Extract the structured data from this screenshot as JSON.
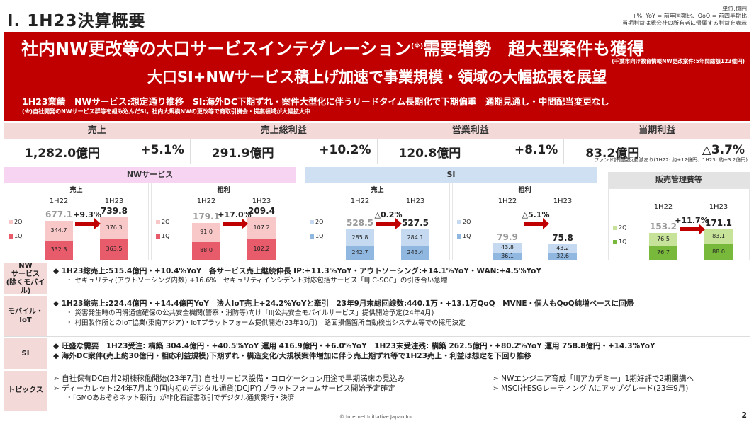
{
  "page_title": "Ⅰ. 1H23決算概要",
  "notes": [
    "単位:億円",
    "+%, YoY = 前年同期比、QoQ = 前四半期比",
    "当期利益は親会社の所有者に帰属する利益を表示"
  ],
  "banner": {
    "headline1_a": "社内NW更改等の大口サービスインテグレーション",
    "headline1_sup": "(※)",
    "headline1_b": "需要増勢　超大型案件も獲得",
    "headline_note": "(千葉市向け教育情報NW更改案件:5年間総額123億円)",
    "headline2": "大口SI+NWサービス積上げ加速で事業規模・領域の大幅拡張を展望",
    "summary": "1H23業績　NWサービス:想定通り推移　SI:海外DC下期ずれ・案件大型化に伴うリードタイム長期化で下期偏重　通期見通し・中間配当変更なし",
    "summary_note": "(※)自社開発のNWサービス群等を組み込んだSI。社内大規模NWの更改等で商取引機会・提案領域が大幅拡大中"
  },
  "kpis": [
    {
      "label": "売上",
      "amount": "1,282.0億円",
      "change": "+5.1%",
      "sub": ""
    },
    {
      "label": "売上総利益",
      "amount": "291.9億円",
      "change": "+10.2%",
      "sub": ""
    },
    {
      "label": "営業利益",
      "amount": "120.8億円",
      "change": "+8.1%",
      "sub": ""
    },
    {
      "label": "当期利益",
      "amount": "83.2億円",
      "change": "△3.7%",
      "sub": "ファンド評価益反動減あり(1H22: 約+12億円、1H23: 約+3.2億円)"
    }
  ],
  "segments": {
    "nw": "NWサービス",
    "si": "SI",
    "sga": "販売管理費等"
  },
  "legend": {
    "q2": "2Q",
    "q1": "1Q"
  },
  "periods": {
    "h22": "1H22",
    "h23": "1H23"
  },
  "panels": [
    {
      "title": "売上",
      "h22_total": "677.1",
      "h23_total": "739.8",
      "h22_q2": "344.7",
      "h22_q1": "332.3",
      "h23_q2": "376.3",
      "h23_q1": "363.5",
      "change": "+9.3%"
    },
    {
      "title": "粗利",
      "h22_total": "179.1",
      "h23_total": "209.4",
      "h22_q2": "91.0",
      "h22_q1": "88.0",
      "h23_q2": "107.2",
      "h23_q1": "102.2",
      "change": "+17.0%"
    },
    {
      "title": "売上",
      "h22_total": "528.5",
      "h23_total": "527.5",
      "h22_q2": "285.8",
      "h22_q1": "242.7",
      "h23_q2": "284.1",
      "h23_q1": "243.4",
      "change": "△0.2%"
    },
    {
      "title": "粗利",
      "h22_total": "79.9",
      "h23_total": "75.8",
      "h22_q2": "43.8",
      "h22_q1": "36.1",
      "h23_q2": "43.2",
      "h23_q1": "32.6",
      "change": "△5.1%"
    },
    {
      "title": "",
      "h22_total": "153.2",
      "h23_total": "171.1",
      "h22_q2": "76.5",
      "h22_q1": "76.7",
      "h23_q2": "83.1",
      "h23_q1": "88.0",
      "change": "+11.7%"
    }
  ],
  "rows": [
    {
      "label": "NW\nサービス\n(除くモバイル)",
      "lines": [
        "◆ 1H23総売上:515.4億円・+10.4%YoY　各サービス売上継続伸長 IP:+11.3%YoY・アウトソーシング:+14.1%YoY・WAN:+4.5%YoY",
        "・ セキュリティ(アウトソーシング内数) +16.6%　セキュリティインシデント対応包括サービス「IIJ C-SOC」の引き合い急増"
      ]
    },
    {
      "label": "モバイル・\nIoT",
      "lines": [
        "◆ 1H23総売上:224.4億円・+14.4億円YoY　法人IoT売上+24.2%YoYと牽引　23年9月末総回線数:440.1万・+13.1万QoQ　MVNE・個人もQoQ純増ペースに回帰",
        "・ 災害発生時の円滑通信確保の公共安全機関(警察・消防等)向け「IIJ公共安全モバイルサービス」提供開始予定(24年4月)",
        "・ 村田製作所とのIoT協業(東南アジア)・IoTプラットフォーム提供開始(23年10月)　路面損傷箇所自動検出システム等での採用決定"
      ]
    },
    {
      "label": "SI",
      "lines": [
        "◆ 旺盛な需要　1H23受注: 構築 304.4億円・+40.5%YoY 運用 416.9億円・+6.0%YoY　1H23末受注残: 構築 262.5億円・+80.2%YoY 運用 758.8億円・+14.3%YoY",
        "◆ 海外DC案件(売上約30億円・相応利益規模)下期ずれ・構造変化/大規模案件増加に伴う売上期ずれ等で1H23売上・利益は想定を下回り推移"
      ]
    }
  ],
  "topics": {
    "label": "トピックス",
    "left": [
      "➢ 自社保有DC白井2期棟稼働開始(23年7月) 自社サービス設備・コロケーション用途で早期満床の見込み",
      "➢ ディーカレット:24年7月より国内初のデジタル通貨(DCJPY)プラットフォームサービス開始予定確定",
      "・「GMOあおぞらネット銀行」が非化石証書取引でデジタル通貨発行・決済"
    ],
    "right": [
      "➢ NWエンジニア育成「IIJアカデミー」1期好評で2期開講へ",
      "➢ MSCI社ESGレーティング Aにアップグレード(23年9月)"
    ]
  },
  "footer": "© Internet Initiative Japan Inc.",
  "page_number": "2",
  "colors": {
    "red": "#c00000",
    "nw_q2": "#f8c7c7",
    "nw_q1": "#e85b6b",
    "si_q2": "#c5daf0",
    "si_q1": "#8fb7df",
    "sga_q2": "#c7e39a",
    "sga_q1": "#78b83a"
  }
}
